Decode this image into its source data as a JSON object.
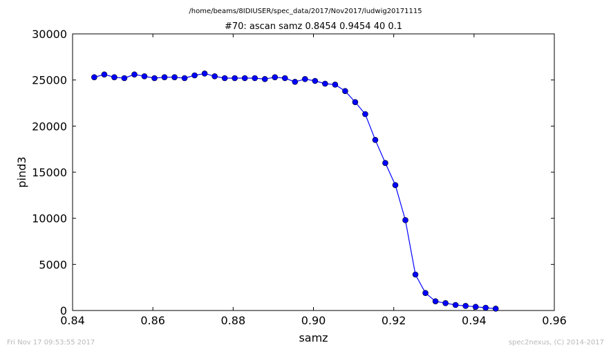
{
  "chart_data": {
    "type": "line",
    "suptitle": "/home/beams/8IDIUSER/spec_data/2017/Nov2017/ludwig20171115",
    "title": "#70: ascan  samz 0.8454 0.9454  40 0.1",
    "xlabel": "samz",
    "ylabel": "pind3",
    "xlim": [
      0.84,
      0.96
    ],
    "ylim": [
      0,
      30000
    ],
    "xticks": [
      "0.84",
      "0.86",
      "0.88",
      "0.90",
      "0.92",
      "0.94",
      "0.96"
    ],
    "yticks": [
      "0",
      "5000",
      "10000",
      "15000",
      "20000",
      "25000",
      "30000"
    ],
    "grid": false,
    "line_color": "#0000ff",
    "marker": "circle",
    "series": [
      {
        "x": [
          0.8454,
          0.8479,
          0.8504,
          0.8529,
          0.8554,
          0.8579,
          0.8604,
          0.8629,
          0.8654,
          0.8679,
          0.8704,
          0.8729,
          0.8754,
          0.8779,
          0.8804,
          0.8829,
          0.8854,
          0.8879,
          0.8904,
          0.8929,
          0.8954,
          0.8979,
          0.9004,
          0.9029,
          0.9054,
          0.9079,
          0.9104,
          0.9129,
          0.9154,
          0.9179,
          0.9204,
          0.9229,
          0.9254,
          0.9279,
          0.9304,
          0.9329,
          0.9354,
          0.9379,
          0.9404,
          0.9429,
          0.9454
        ],
        "y": [
          25300,
          25600,
          25300,
          25200,
          25600,
          25400,
          25200,
          25300,
          25300,
          25200,
          25500,
          25700,
          25400,
          25200,
          25200,
          25200,
          25200,
          25100,
          25300,
          25200,
          24800,
          25100,
          24900,
          24600,
          24500,
          23800,
          22600,
          21300,
          18500,
          16000,
          13600,
          9800,
          3900,
          1900,
          1000,
          800,
          600,
          500,
          400,
          300,
          200
        ]
      }
    ]
  },
  "footer": {
    "left": "Fri Nov 17 09:53:55 2017",
    "right": "spec2nexus, (C) 2014-2017"
  }
}
